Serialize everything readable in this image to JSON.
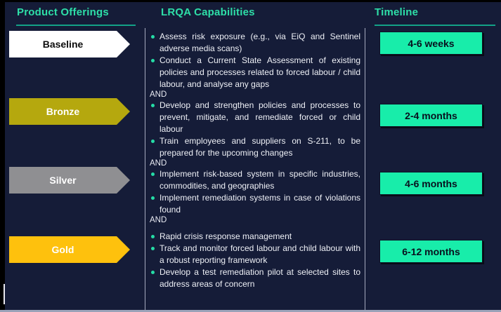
{
  "header": {
    "product_offerings": "Product Offerings",
    "capabilities": "LRQA Capabilities",
    "timeline": "Timeline"
  },
  "tiers": [
    {
      "label": "Baseline",
      "timeline": "4-6 weeks",
      "arrow_color": "#ffffff",
      "label_color": "#0d0d0d"
    },
    {
      "label": "Bronze",
      "timeline": "2-4 months",
      "arrow_color": "#b5a80e",
      "label_color": "#ffffff"
    },
    {
      "label": "Silver",
      "timeline": "4-6 months",
      "arrow_color": "#8f8f92",
      "label_color": "#ffffff"
    },
    {
      "label": "Gold",
      "timeline": "6-12 months",
      "arrow_color": "#fec10d",
      "label_color": "#ffffff"
    }
  ],
  "capabilities": {
    "separator": "AND",
    "groups": [
      {
        "items": [
          "Assess risk exposure (e.g., via EiQ and Sentinel adverse media scans)",
          "Conduct a Current State Assessment  of existing policies and processes related to forced labour / child labour, and analyse any gaps"
        ]
      },
      {
        "items": [
          "Develop and strengthen  policies and processes to prevent, mitigate, and remediate forced or child labour",
          "Train employees and suppliers on S-211, to be prepared for the upcoming changes"
        ]
      },
      {
        "items": [
          "Implement risk-based system in specific industries, commodities, and geographies",
          "Implement remediation systems in case of violations found"
        ]
      },
      {
        "items": [
          "Rapid crisis response management",
          "Track and monitor forced labour and child labour with a robust reporting framework",
          "Develop a test remediation pilot at selected sites to address areas of concern"
        ]
      }
    ]
  },
  "colors": {
    "background": "#151c38",
    "header_text": "#2edfa8",
    "header_underline": "#13a287",
    "badge_green": "#18edaa",
    "bullet_teal": "#25dca6",
    "body_text": "#eef0f6"
  }
}
